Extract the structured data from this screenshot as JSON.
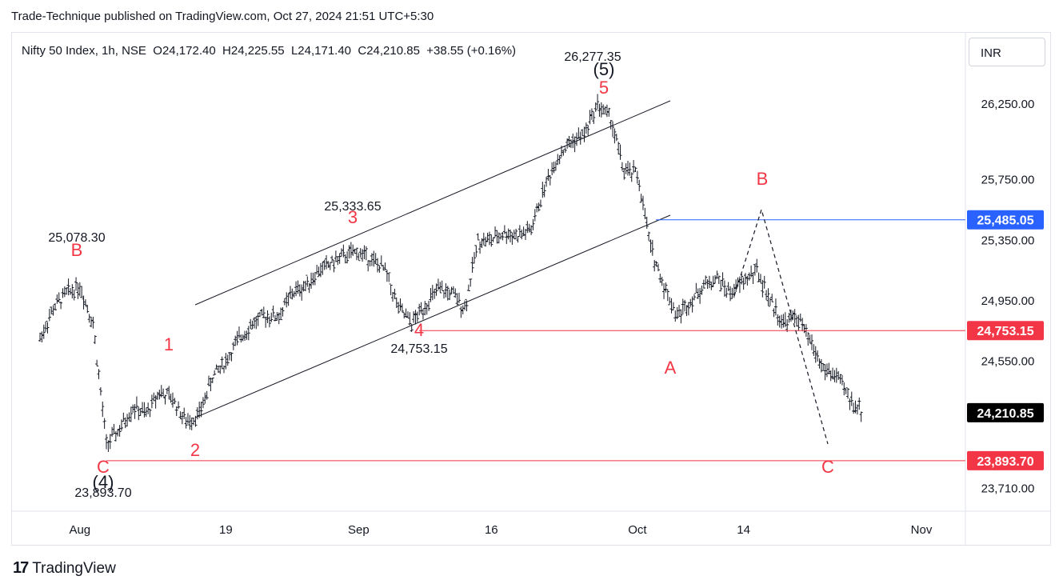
{
  "header": {
    "publish_line": "Trade-Technique published on TradingView.com, Oct 27, 2024 21:51 UTC+5:30"
  },
  "legend": {
    "symbol": "Nifty 50 Index, 1h, NSE",
    "open_label": "O",
    "open": "24,172.40",
    "high_label": "H",
    "high": "24,225.55",
    "low_label": "L",
    "low": "24,171.40",
    "close_label": "C",
    "close": "24,210.85",
    "change": "+38.55 (+0.16%)"
  },
  "currency": "INR",
  "footer": {
    "brand": "TradingView",
    "logo_text": "17"
  },
  "colors": {
    "up_down_bars": "#131722",
    "wave_red": "#f23645",
    "channel": "#131722",
    "level_blue": "#2962ff",
    "level_red": "#f23645",
    "grid": "#e0e3eb"
  },
  "chart_data": {
    "type": "line",
    "title": "",
    "xlabel": "",
    "ylabel": "",
    "x_ticks": [
      "Aug",
      "19",
      "Sep",
      "16",
      "Oct",
      "14",
      "Nov"
    ],
    "y_ticks": [
      "26,250.00",
      "25,750.00",
      "25,350.00",
      "24,950.00",
      "24,550.00",
      "23,710.00"
    ],
    "ylim": [
      23560,
      26720
    ],
    "price_tags": [
      {
        "label": "25,485.05",
        "value": 25485.05,
        "color": "#2962ff",
        "text_color": "#ffffff"
      },
      {
        "label": "24,753.15",
        "value": 24753.15,
        "color": "#f23645",
        "text_color": "#ffffff"
      },
      {
        "label": "24,210.85",
        "value": 24210.85,
        "color": "#000000",
        "text_color": "#ffffff"
      },
      {
        "label": "23,893.70",
        "value": 23893.7,
        "color": "#f23645",
        "text_color": "#ffffff"
      }
    ],
    "series": [
      {
        "x": [
          "2024-07-29",
          "2024-07-30",
          "2024-07-31",
          "2024-08-01",
          "2024-08-02",
          "2024-08-05",
          "2024-08-06",
          "2024-08-07",
          "2024-08-08",
          "2024-08-09",
          "2024-08-12",
          "2024-08-13",
          "2024-08-14",
          "2024-08-16",
          "2024-08-19",
          "2024-08-20",
          "2024-08-21",
          "2024-08-22",
          "2024-08-23",
          "2024-08-26",
          "2024-08-27",
          "2024-08-28",
          "2024-08-29",
          "2024-08-30",
          "2024-09-02",
          "2024-09-03",
          "2024-09-04",
          "2024-09-05",
          "2024-09-06",
          "2024-09-09",
          "2024-09-10",
          "2024-09-11",
          "2024-09-12",
          "2024-09-13",
          "2024-09-16",
          "2024-09-17",
          "2024-09-18",
          "2024-09-19",
          "2024-09-20",
          "2024-09-23",
          "2024-09-24",
          "2024-09-25",
          "2024-09-26",
          "2024-09-27",
          "2024-09-30",
          "2024-10-01",
          "2024-10-03",
          "2024-10-04",
          "2024-10-07",
          "2024-10-08",
          "2024-10-09",
          "2024-10-10",
          "2024-10-11",
          "2024-10-14",
          "2024-10-15",
          "2024-10-16",
          "2024-10-17",
          "2024-10-18",
          "2024-10-21",
          "2024-10-22",
          "2024-10-23",
          "2024-10-24",
          "2024-10-25"
        ],
        "y": [
          24700,
          24900,
          25000,
          25050,
          24800,
          24000,
          24100,
          24250,
          24200,
          24350,
          24300,
          24150,
          24200,
          24450,
          24550,
          24700,
          24800,
          24850,
          24850,
          25000,
          25050,
          25150,
          25200,
          25250,
          25270,
          25220,
          25150,
          24900,
          24800,
          24920,
          25020,
          25000,
          24900,
          25350,
          25350,
          25400,
          25380,
          25420,
          25700,
          25900,
          26000,
          26050,
          26250,
          26150,
          25800,
          25790,
          25300,
          25050,
          24850,
          24950,
          25050,
          25100,
          25000,
          25080,
          25150,
          24950,
          24800,
          24850,
          24680,
          24500,
          24450,
          24300,
          24210
        ],
        "name": ""
      }
    ],
    "annotations": [
      {
        "label": "25,078.30"
      },
      {
        "label": "B"
      },
      {
        "label": "1"
      },
      {
        "label": "2"
      },
      {
        "label": "3"
      },
      {
        "label": "25,333.65"
      },
      {
        "label": "4"
      },
      {
        "label": "24,753.15"
      },
      {
        "label": "5"
      },
      {
        "label": "(5)"
      },
      {
        "label": "26,277.35"
      },
      {
        "label": "A"
      },
      {
        "label": "B"
      },
      {
        "label": "C"
      },
      {
        "label": "C"
      },
      {
        "label": "(4)"
      },
      {
        "label": "23,893.70"
      }
    ],
    "grid": false,
    "legend": "none"
  }
}
